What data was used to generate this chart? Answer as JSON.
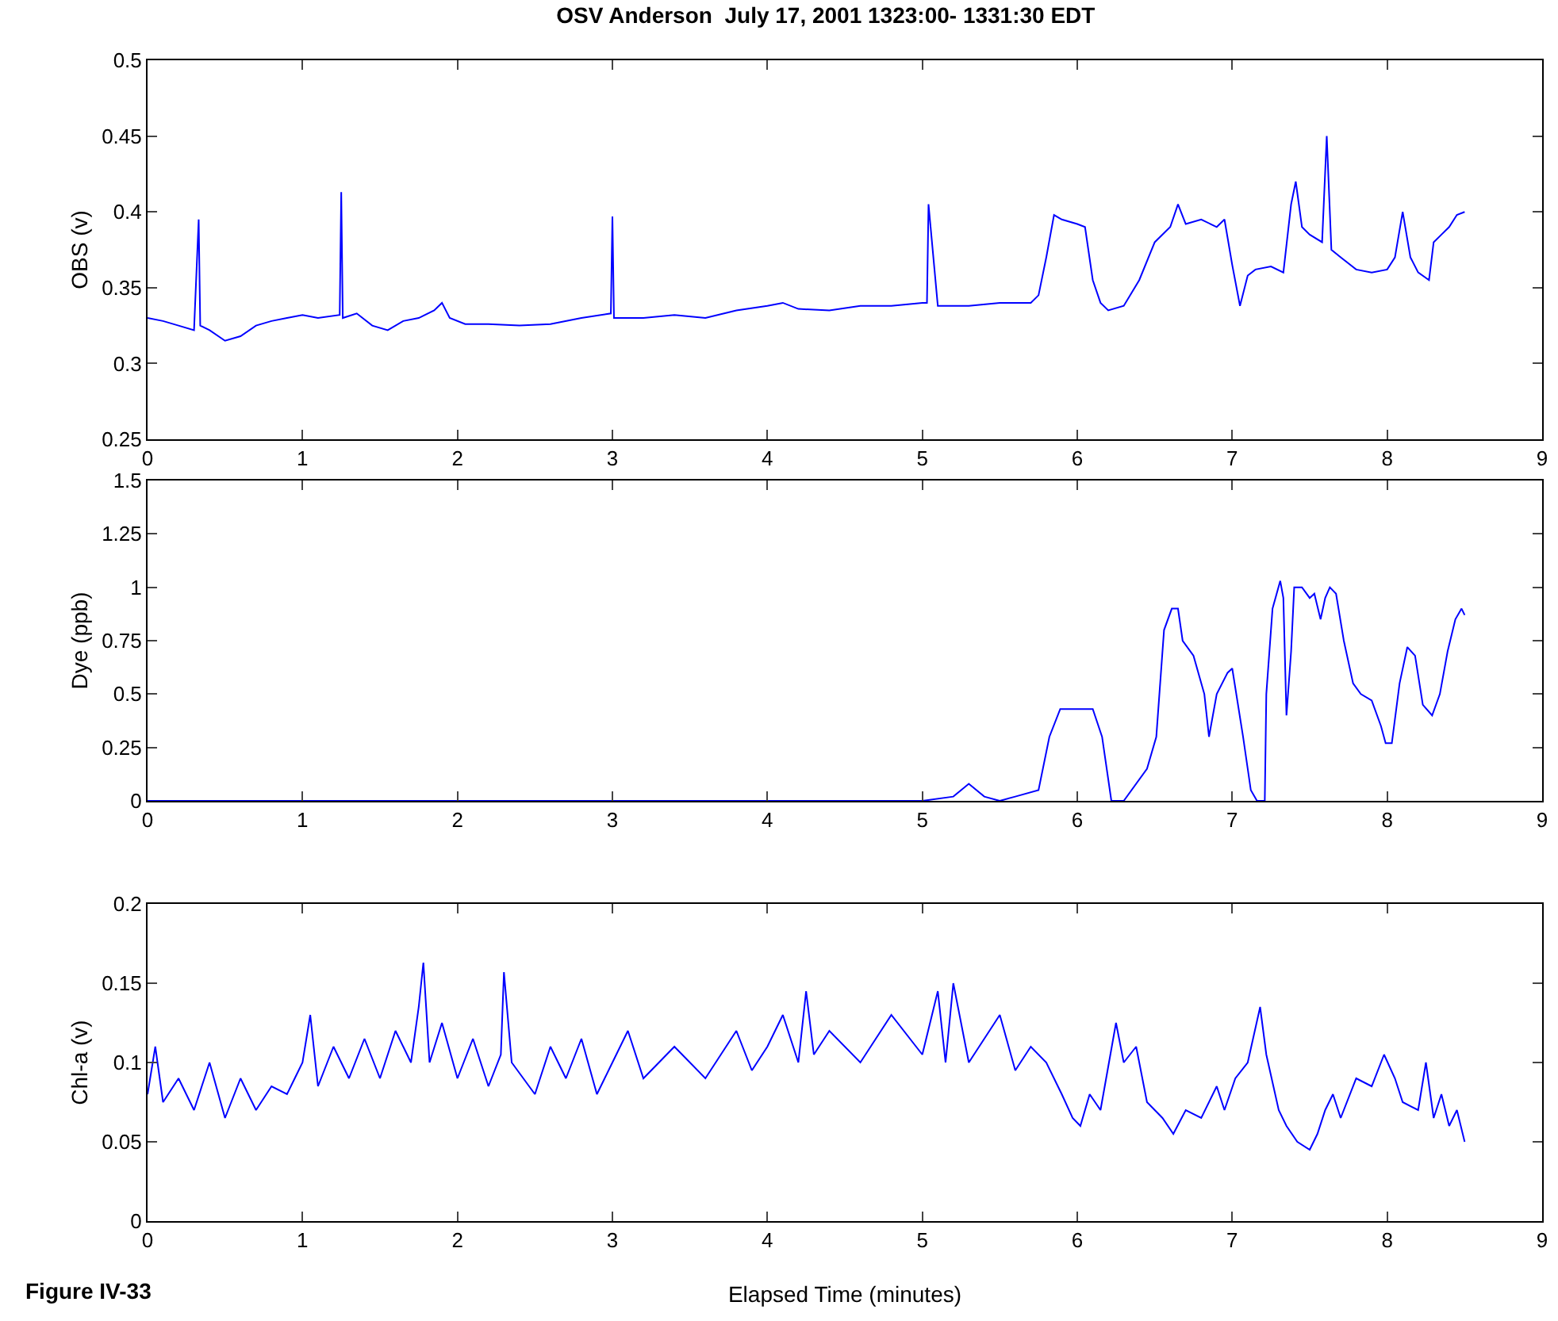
{
  "chart_data": [
    {
      "type": "line",
      "title": "OSV Anderson  July 17, 2001 1323:00- 1331:30 EDT",
      "ylabel": "OBS (v)",
      "color": "#0000ff",
      "xlim": [
        0,
        9
      ],
      "xticks": [
        0,
        1,
        2,
        3,
        4,
        5,
        6,
        7,
        8,
        9
      ],
      "ylim": [
        0.25,
        0.5
      ],
      "yticks": [
        0.25,
        0.3,
        0.35,
        0.4,
        0.45,
        0.5
      ],
      "grid": false,
      "x": [
        0,
        0.1,
        0.2,
        0.3,
        0.33,
        0.34,
        0.4,
        0.5,
        0.6,
        0.7,
        0.8,
        0.9,
        1.0,
        1.1,
        1.24,
        1.25,
        1.26,
        1.35,
        1.45,
        1.55,
        1.65,
        1.75,
        1.85,
        1.9,
        1.95,
        2.05,
        2.2,
        2.4,
        2.6,
        2.8,
        2.99,
        3.0,
        3.01,
        3.2,
        3.4,
        3.6,
        3.8,
        4.0,
        4.1,
        4.2,
        4.4,
        4.6,
        4.8,
        5.0,
        5.03,
        5.04,
        5.1,
        5.3,
        5.5,
        5.7,
        5.75,
        5.8,
        5.85,
        5.9,
        6.0,
        6.05,
        6.1,
        6.15,
        6.2,
        6.3,
        6.4,
        6.5,
        6.6,
        6.65,
        6.7,
        6.8,
        6.9,
        6.95,
        7.0,
        7.05,
        7.1,
        7.15,
        7.25,
        7.33,
        7.38,
        7.41,
        7.45,
        7.5,
        7.58,
        7.61,
        7.64,
        7.7,
        7.8,
        7.9,
        8.0,
        8.05,
        8.1,
        8.15,
        8.2,
        8.27,
        8.3,
        8.35,
        8.4,
        8.45,
        8.5
      ],
      "values": [
        0.33,
        0.328,
        0.325,
        0.322,
        0.395,
        0.325,
        0.322,
        0.315,
        0.318,
        0.325,
        0.328,
        0.33,
        0.332,
        0.33,
        0.332,
        0.413,
        0.33,
        0.333,
        0.325,
        0.322,
        0.328,
        0.33,
        0.335,
        0.34,
        0.33,
        0.326,
        0.326,
        0.325,
        0.326,
        0.33,
        0.333,
        0.397,
        0.33,
        0.33,
        0.332,
        0.33,
        0.335,
        0.338,
        0.34,
        0.336,
        0.335,
        0.338,
        0.338,
        0.34,
        0.34,
        0.405,
        0.338,
        0.338,
        0.34,
        0.34,
        0.345,
        0.37,
        0.398,
        0.395,
        0.392,
        0.39,
        0.355,
        0.34,
        0.335,
        0.338,
        0.355,
        0.38,
        0.39,
        0.405,
        0.392,
        0.395,
        0.39,
        0.395,
        0.365,
        0.338,
        0.358,
        0.362,
        0.364,
        0.36,
        0.405,
        0.42,
        0.39,
        0.385,
        0.38,
        0.45,
        0.375,
        0.37,
        0.362,
        0.36,
        0.362,
        0.37,
        0.4,
        0.37,
        0.36,
        0.355,
        0.38,
        0.385,
        0.39,
        0.398,
        0.4
      ]
    },
    {
      "type": "line",
      "ylabel": "Dye (ppb)",
      "color": "#0000ff",
      "xlim": [
        0,
        9
      ],
      "xticks": [
        0,
        1,
        2,
        3,
        4,
        5,
        6,
        7,
        8,
        9
      ],
      "ylim": [
        0,
        1.5
      ],
      "yticks": [
        0,
        0.25,
        0.5,
        0.75,
        1,
        1.25,
        1.5
      ],
      "grid": false,
      "x": [
        0,
        0.5,
        1.0,
        1.5,
        2.0,
        2.5,
        3.0,
        3.5,
        4.0,
        4.5,
        5.0,
        5.2,
        5.3,
        5.4,
        5.5,
        5.6,
        5.75,
        5.82,
        5.89,
        6.1,
        6.16,
        6.22,
        6.3,
        6.45,
        6.51,
        6.56,
        6.61,
        6.65,
        6.68,
        6.75,
        6.82,
        6.85,
        6.9,
        6.97,
        7.0,
        7.07,
        7.12,
        7.16,
        7.21,
        7.22,
        7.26,
        7.31,
        7.33,
        7.35,
        7.38,
        7.4,
        7.45,
        7.5,
        7.53,
        7.57,
        7.6,
        7.63,
        7.67,
        7.72,
        7.78,
        7.83,
        7.9,
        7.96,
        7.99,
        8.03,
        8.08,
        8.13,
        8.18,
        8.23,
        8.29,
        8.34,
        8.39,
        8.44,
        8.48,
        8.5
      ],
      "values": [
        0,
        0,
        0,
        0,
        0,
        0,
        0,
        0,
        0,
        0,
        0,
        0.02,
        0.08,
        0.02,
        0,
        0.02,
        0.05,
        0.3,
        0.43,
        0.43,
        0.3,
        0,
        0,
        0.15,
        0.3,
        0.8,
        0.9,
        0.9,
        0.75,
        0.68,
        0.5,
        0.3,
        0.5,
        0.6,
        0.62,
        0.3,
        0.05,
        0,
        0,
        0.5,
        0.9,
        1.03,
        0.95,
        0.4,
        0.7,
        1.0,
        1.0,
        0.95,
        0.97,
        0.85,
        0.95,
        1.0,
        0.97,
        0.75,
        0.55,
        0.5,
        0.47,
        0.35,
        0.27,
        0.27,
        0.55,
        0.72,
        0.68,
        0.45,
        0.4,
        0.5,
        0.7,
        0.85,
        0.9,
        0.87
      ]
    },
    {
      "type": "line",
      "xlabel": "Elapsed Time (minutes)",
      "ylabel": "Chl-a (v)",
      "color": "#0000ff",
      "xlim": [
        0,
        9
      ],
      "xticks": [
        0,
        1,
        2,
        3,
        4,
        5,
        6,
        7,
        8,
        9
      ],
      "ylim": [
        0,
        0.2
      ],
      "yticks": [
        0,
        0.05,
        0.1,
        0.15,
        0.2
      ],
      "grid": false,
      "annotations": [
        "Figure IV-33"
      ],
      "x": [
        0,
        0.05,
        0.1,
        0.2,
        0.3,
        0.4,
        0.5,
        0.6,
        0.7,
        0.8,
        0.9,
        0.95,
        1.0,
        1.05,
        1.1,
        1.2,
        1.3,
        1.4,
        1.5,
        1.6,
        1.7,
        1.75,
        1.78,
        1.82,
        1.9,
        2.0,
        2.1,
        2.2,
        2.28,
        2.3,
        2.35,
        2.5,
        2.6,
        2.7,
        2.8,
        2.9,
        3.0,
        3.1,
        3.2,
        3.4,
        3.6,
        3.8,
        3.9,
        4.0,
        4.1,
        4.2,
        4.25,
        4.3,
        4.4,
        4.6,
        4.8,
        5.0,
        5.1,
        5.15,
        5.2,
        5.3,
        5.5,
        5.6,
        5.7,
        5.8,
        5.9,
        5.97,
        6.02,
        6.08,
        6.15,
        6.25,
        6.3,
        6.38,
        6.45,
        6.55,
        6.62,
        6.7,
        6.8,
        6.9,
        6.95,
        7.02,
        7.1,
        7.18,
        7.22,
        7.3,
        7.35,
        7.42,
        7.5,
        7.55,
        7.6,
        7.65,
        7.7,
        7.8,
        7.9,
        7.98,
        8.05,
        8.1,
        8.2,
        8.25,
        8.3,
        8.35,
        8.4,
        8.45,
        8.5
      ],
      "values": [
        0.08,
        0.11,
        0.075,
        0.09,
        0.07,
        0.1,
        0.065,
        0.09,
        0.07,
        0.085,
        0.08,
        0.09,
        0.1,
        0.13,
        0.085,
        0.11,
        0.09,
        0.115,
        0.09,
        0.12,
        0.1,
        0.135,
        0.163,
        0.1,
        0.125,
        0.09,
        0.115,
        0.085,
        0.105,
        0.157,
        0.1,
        0.08,
        0.11,
        0.09,
        0.115,
        0.08,
        0.1,
        0.12,
        0.09,
        0.11,
        0.09,
        0.12,
        0.095,
        0.11,
        0.13,
        0.1,
        0.145,
        0.105,
        0.12,
        0.1,
        0.13,
        0.105,
        0.145,
        0.1,
        0.15,
        0.1,
        0.13,
        0.095,
        0.11,
        0.1,
        0.08,
        0.065,
        0.06,
        0.08,
        0.07,
        0.125,
        0.1,
        0.11,
        0.075,
        0.065,
        0.055,
        0.07,
        0.065,
        0.085,
        0.07,
        0.09,
        0.1,
        0.135,
        0.105,
        0.07,
        0.06,
        0.05,
        0.045,
        0.055,
        0.07,
        0.08,
        0.065,
        0.09,
        0.085,
        0.105,
        0.09,
        0.075,
        0.07,
        0.1,
        0.065,
        0.08,
        0.06,
        0.07,
        0.05
      ]
    }
  ]
}
